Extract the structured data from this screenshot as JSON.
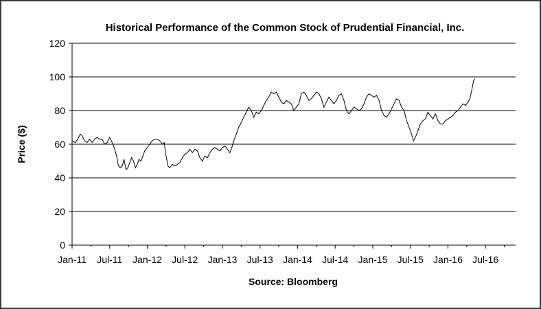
{
  "chart_data": {
    "type": "line",
    "title": "Historical Performance of the Common Stock of Prudential Financial, Inc.",
    "ylabel": "Price ($)",
    "source": "Source: Bloomberg",
    "ylim": [
      0,
      120
    ],
    "yticks": [
      "0",
      "20",
      "40",
      "60",
      "80",
      "100",
      "120"
    ],
    "xticks": [
      "Jan-11",
      "Jul-11",
      "Jan-12",
      "Jul-12",
      "Jan-13",
      "Jul-13",
      "Jan-14",
      "Jul-14",
      "Jan-15",
      "Jul-15",
      "Jan-16",
      "Jul-16"
    ],
    "x_range_months": [
      0,
      70.8
    ],
    "grid": "horizontal",
    "line_color": "#000000",
    "series": [
      {
        "points": [
          [
            0,
            62
          ],
          [
            0.5,
            61
          ],
          [
            0.9,
            63
          ],
          [
            1.3,
            66
          ],
          [
            1.6,
            65
          ],
          [
            2.0,
            62
          ],
          [
            2.4,
            61
          ],
          [
            2.8,
            63
          ],
          [
            3.2,
            61
          ],
          [
            3.6,
            63
          ],
          [
            4.0,
            64
          ],
          [
            4.4,
            63
          ],
          [
            4.8,
            63
          ],
          [
            5.2,
            60
          ],
          [
            5.6,
            61
          ],
          [
            6.0,
            64
          ],
          [
            6.4,
            61
          ],
          [
            6.8,
            57
          ],
          [
            7.1,
            53
          ],
          [
            7.4,
            47
          ],
          [
            7.7,
            46
          ],
          [
            8.0,
            47
          ],
          [
            8.3,
            51
          ],
          [
            8.6,
            45
          ],
          [
            8.9,
            46
          ],
          [
            9.2,
            49
          ],
          [
            9.5,
            52
          ],
          [
            9.8,
            50
          ],
          [
            10.1,
            46
          ],
          [
            10.4,
            48
          ],
          [
            10.7,
            51
          ],
          [
            11.0,
            50
          ],
          [
            11.3,
            53
          ],
          [
            11.6,
            56
          ],
          [
            12.0,
            58
          ],
          [
            12.4,
            60
          ],
          [
            12.8,
            62
          ],
          [
            13.2,
            63
          ],
          [
            13.6,
            63
          ],
          [
            14.0,
            62
          ],
          [
            14.4,
            60
          ],
          [
            14.7,
            61
          ],
          [
            15.0,
            53
          ],
          [
            15.3,
            47
          ],
          [
            15.6,
            46
          ],
          [
            16.0,
            48
          ],
          [
            16.4,
            47
          ],
          [
            16.8,
            48
          ],
          [
            17.2,
            49
          ],
          [
            17.6,
            52
          ],
          [
            18.0,
            54
          ],
          [
            18.4,
            55
          ],
          [
            18.8,
            57
          ],
          [
            19.2,
            55
          ],
          [
            19.6,
            57
          ],
          [
            20.0,
            56
          ],
          [
            20.4,
            52
          ],
          [
            20.8,
            50
          ],
          [
            21.2,
            53
          ],
          [
            21.6,
            52
          ],
          [
            22.0,
            55
          ],
          [
            22.4,
            57
          ],
          [
            22.8,
            58
          ],
          [
            23.2,
            57
          ],
          [
            23.6,
            56
          ],
          [
            24.0,
            58
          ],
          [
            24.4,
            59
          ],
          [
            24.8,
            57
          ],
          [
            25.2,
            55
          ],
          [
            25.5,
            58
          ],
          [
            25.8,
            62
          ],
          [
            26.2,
            66
          ],
          [
            26.6,
            70
          ],
          [
            27.0,
            73
          ],
          [
            27.4,
            76
          ],
          [
            27.8,
            79
          ],
          [
            28.2,
            82
          ],
          [
            28.6,
            80
          ],
          [
            29.0,
            76
          ],
          [
            29.4,
            79
          ],
          [
            29.8,
            78
          ],
          [
            30.2,
            80
          ],
          [
            30.6,
            83
          ],
          [
            31.0,
            86
          ],
          [
            31.4,
            88
          ],
          [
            31.8,
            91
          ],
          [
            32.2,
            90
          ],
          [
            32.6,
            91
          ],
          [
            33.0,
            88
          ],
          [
            33.4,
            85
          ],
          [
            33.8,
            84
          ],
          [
            34.2,
            86
          ],
          [
            34.6,
            85
          ],
          [
            35.0,
            84
          ],
          [
            35.4,
            80
          ],
          [
            35.8,
            82
          ],
          [
            36.2,
            84
          ],
          [
            36.6,
            90
          ],
          [
            37.0,
            91
          ],
          [
            37.4,
            89
          ],
          [
            37.8,
            86
          ],
          [
            38.2,
            87
          ],
          [
            38.6,
            89
          ],
          [
            39.0,
            91
          ],
          [
            39.4,
            90
          ],
          [
            39.8,
            87
          ],
          [
            40.2,
            82
          ],
          [
            40.6,
            85
          ],
          [
            41.0,
            88
          ],
          [
            41.4,
            86
          ],
          [
            41.8,
            84
          ],
          [
            42.2,
            86
          ],
          [
            42.6,
            89
          ],
          [
            43.0,
            90
          ],
          [
            43.4,
            86
          ],
          [
            43.8,
            80
          ],
          [
            44.2,
            78
          ],
          [
            44.6,
            80
          ],
          [
            45.0,
            82
          ],
          [
            45.4,
            81
          ],
          [
            45.8,
            80
          ],
          [
            46.2,
            81
          ],
          [
            46.6,
            84
          ],
          [
            47.0,
            88
          ],
          [
            47.4,
            90
          ],
          [
            47.8,
            89
          ],
          [
            48.2,
            88
          ],
          [
            48.6,
            89
          ],
          [
            49.0,
            86
          ],
          [
            49.4,
            80
          ],
          [
            49.8,
            77
          ],
          [
            50.2,
            76
          ],
          [
            50.6,
            78
          ],
          [
            51.0,
            81
          ],
          [
            51.4,
            84
          ],
          [
            51.8,
            87
          ],
          [
            52.2,
            86
          ],
          [
            52.6,
            82
          ],
          [
            53.0,
            80
          ],
          [
            53.4,
            74
          ],
          [
            53.8,
            70
          ],
          [
            54.2,
            66
          ],
          [
            54.5,
            62
          ],
          [
            54.8,
            64
          ],
          [
            55.2,
            68
          ],
          [
            55.6,
            72
          ],
          [
            56.0,
            74
          ],
          [
            56.4,
            75
          ],
          [
            56.8,
            79
          ],
          [
            57.2,
            77
          ],
          [
            57.6,
            75
          ],
          [
            58.0,
            78
          ],
          [
            58.4,
            74
          ],
          [
            58.8,
            72
          ],
          [
            59.2,
            72
          ],
          [
            59.6,
            74
          ],
          [
            60.0,
            75
          ],
          [
            60.4,
            76
          ],
          [
            60.8,
            77
          ],
          [
            61.2,
            79
          ],
          [
            61.6,
            80
          ],
          [
            62.0,
            82
          ],
          [
            62.4,
            84
          ],
          [
            62.8,
            83
          ],
          [
            63.2,
            85
          ],
          [
            63.5,
            87
          ],
          [
            63.8,
            92
          ],
          [
            64.1,
            98
          ],
          [
            64.3,
            99
          ]
        ]
      }
    ]
  }
}
